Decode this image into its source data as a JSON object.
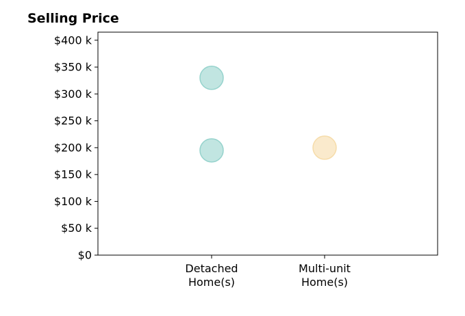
{
  "chart_data": {
    "type": "scatter",
    "title": "Selling Price",
    "xlabel": "",
    "ylabel": "",
    "categories": [
      [
        "Detached",
        "Home(s)"
      ],
      [
        "Multi-unit",
        "Home(s)"
      ]
    ],
    "ylim": [
      0,
      415000
    ],
    "y_ticks": [
      0,
      50000,
      100000,
      150000,
      200000,
      250000,
      300000,
      350000,
      400000
    ],
    "y_tick_labels": [
      "$0",
      "$50 k",
      "$100 k",
      "$150 k",
      "$200 k",
      "$250 k",
      "$300 k",
      "$350 k",
      "$400 k"
    ],
    "grid": false,
    "points": [
      {
        "category": 0,
        "y": 330000,
        "color": "#8ecfc9"
      },
      {
        "category": 0,
        "y": 195000,
        "color": "#8ecfc9"
      },
      {
        "category": 1,
        "y": 200000,
        "color": "#f5d9a3"
      }
    ]
  }
}
